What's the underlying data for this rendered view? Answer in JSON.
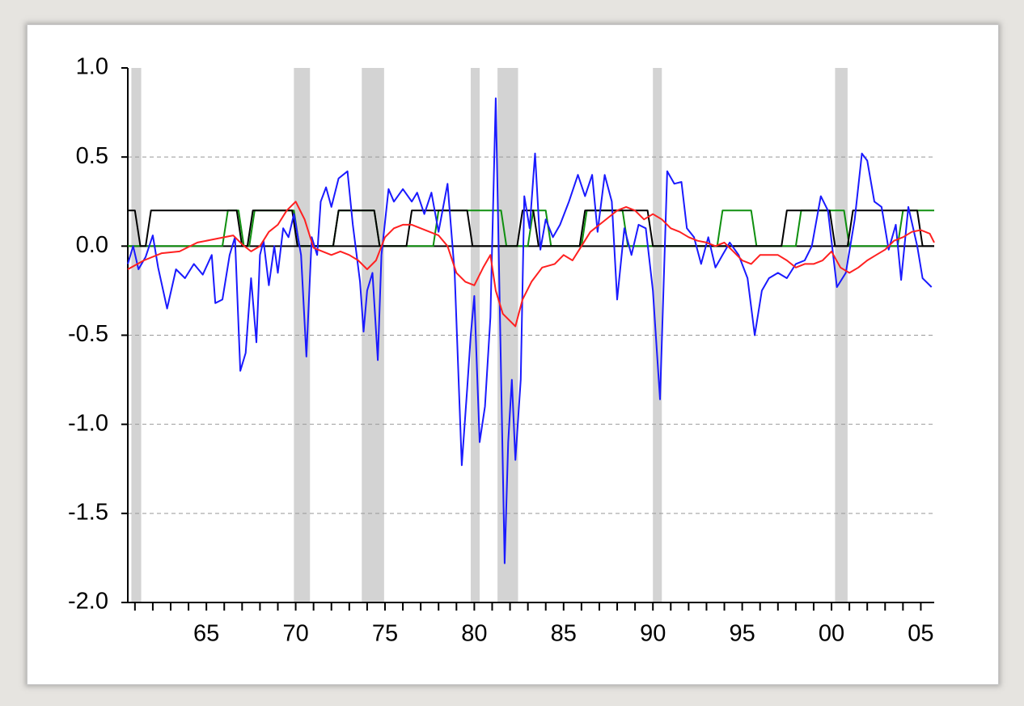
{
  "chart_data": {
    "type": "line",
    "xlim": [
      1960.6,
      2005.75
    ],
    "ylim": [
      -2,
      1
    ],
    "yticks": [
      {
        "value": 1,
        "label": "1.0"
      },
      0.5,
      {
        "value": 0,
        "label": "0.0"
      },
      -0.5,
      {
        "value": -1,
        "label": "-1.0"
      },
      -1.5,
      {
        "value": -2,
        "label": "-2.0"
      }
    ],
    "xticks": [
      {
        "value": 1965,
        "label": "65"
      },
      {
        "value": 1970,
        "label": "70"
      },
      {
        "value": 1975,
        "label": "75"
      },
      {
        "value": 1980,
        "label": "80"
      },
      {
        "value": 1985,
        "label": "85"
      },
      {
        "value": 1990,
        "label": "90"
      },
      {
        "value": 1995,
        "label": "95"
      },
      {
        "value": 2000,
        "label": "00"
      },
      {
        "value": 2005,
        "label": "05"
      }
    ],
    "xminor_ticks": [
      1961,
      1962,
      1963,
      1964,
      1965,
      1966,
      1967,
      1968,
      1969,
      1970,
      1971,
      1972,
      1973,
      1974,
      1975,
      1976,
      1977,
      1978,
      1979,
      1980,
      1981,
      1982,
      1983,
      1984,
      1985,
      1986,
      1987,
      1988,
      1989,
      1990,
      1991,
      1992,
      1993,
      1994,
      1995,
      1996,
      1997,
      1998,
      1999,
      2000,
      2001,
      2002,
      2003,
      2004,
      2005
    ],
    "grid": true,
    "shading": [
      [
        1960.8,
        1961.35
      ],
      [
        1969.9,
        1970.8
      ],
      [
        1973.7,
        1974.95
      ],
      [
        1979.8,
        1980.3
      ],
      [
        1981.3,
        1982.45
      ],
      [
        1990.0,
        1990.5
      ],
      [
        2000.2,
        2000.9
      ]
    ],
    "series": [
      {
        "color": "#109010",
        "x": [
          1960.6,
          1965.9,
          1966.2,
          1966.8,
          1967.1,
          1967.4,
          1967.7,
          1969.9,
          1970.2,
          1972.1,
          1972.4,
          1974.4,
          1974.7,
          1977.7,
          1978.0,
          1981.5,
          1981.8,
          1983.0,
          1983.3,
          1984.0,
          1984.3,
          1986.0,
          1986.3,
          1988.3,
          1988.6,
          1993.6,
          1993.9,
          1995.5,
          1995.8,
          1998.0,
          1998.3,
          2000.7,
          2001.0,
          2003.7,
          2004.0,
          2005.75
        ],
        "values": [
          0,
          0,
          0.2,
          0.2,
          0,
          0,
          0.2,
          0.2,
          0,
          0,
          0.2,
          0.2,
          0,
          0,
          0.2,
          0.2,
          0,
          0,
          0.2,
          0.2,
          0,
          0,
          0.2,
          0.2,
          0,
          0,
          0.2,
          0.2,
          0,
          0,
          0.2,
          0.2,
          0,
          0,
          0.2,
          0.2
        ]
      },
      {
        "color": "#000000",
        "x": [
          1960.6,
          1961.0,
          1961.3,
          1961.6,
          1961.9,
          1966.7,
          1967.0,
          1967.3,
          1967.6,
          1969.8,
          1970.1,
          1972.1,
          1972.4,
          1974.4,
          1974.7,
          1976.2,
          1976.5,
          1979.6,
          1979.9,
          1982.4,
          1982.7,
          1983.3,
          1983.6,
          1985.9,
          1986.2,
          1989.7,
          1990.0,
          1997.2,
          1997.5,
          1999.9,
          2000.2,
          2000.9,
          2001.2,
          2004.8,
          2005.1,
          2005.75
        ],
        "values": [
          0.2,
          0.2,
          0,
          0,
          0.2,
          0.2,
          0,
          0,
          0.2,
          0.2,
          0,
          0,
          0.2,
          0.2,
          0,
          0,
          0.2,
          0.2,
          0,
          0,
          0.2,
          0.2,
          0,
          0,
          0.2,
          0.2,
          0,
          0,
          0.2,
          0.2,
          0,
          0,
          0.2,
          0.2,
          0,
          0
        ]
      },
      {
        "color": "#1a1aff",
        "x": [
          1960.6,
          1960.9,
          1961.2,
          1961.6,
          1962.0,
          1962.3,
          1962.8,
          1963.3,
          1963.8,
          1964.3,
          1964.8,
          1965.3,
          1965.5,
          1965.9,
          1966.3,
          1966.6,
          1966.9,
          1967.2,
          1967.5,
          1967.8,
          1968.0,
          1968.2,
          1968.5,
          1968.8,
          1969.0,
          1969.3,
          1969.6,
          1969.9,
          1970.3,
          1970.6,
          1970.9,
          1971.2,
          1971.4,
          1971.7,
          1972.0,
          1972.4,
          1972.9,
          1973.2,
          1973.6,
          1973.8,
          1974.0,
          1974.3,
          1974.6,
          1974.8,
          1975.2,
          1975.5,
          1976.0,
          1976.5,
          1976.8,
          1977.2,
          1977.6,
          1978.0,
          1978.5,
          1978.9,
          1979.3,
          1979.6,
          1979.8,
          1980.0,
          1980.3,
          1980.6,
          1980.9,
          1981.2,
          1981.4,
          1981.7,
          1981.9,
          1982.1,
          1982.3,
          1982.6,
          1982.8,
          1983.1,
          1983.4,
          1983.7,
          1984.0,
          1984.4,
          1984.8,
          1985.3,
          1985.8,
          1986.2,
          1986.6,
          1986.9,
          1987.3,
          1987.7,
          1988.0,
          1988.4,
          1988.8,
          1989.2,
          1989.6,
          1990.0,
          1990.4,
          1990.8,
          1991.2,
          1991.6,
          1991.9,
          1992.3,
          1992.7,
          1993.1,
          1993.5,
          1993.9,
          1994.3,
          1994.8,
          1995.3,
          1995.7,
          1996.1,
          1996.5,
          1997.0,
          1997.5,
          1998.0,
          1998.5,
          1998.9,
          1999.4,
          1999.8,
          2000.3,
          2000.8,
          2001.3,
          2001.7,
          2002.0,
          2002.4,
          2002.8,
          2003.2,
          2003.6,
          2003.9,
          2004.3,
          2004.8,
          2005.1,
          2005.6
        ],
        "values": [
          -0.1,
          0,
          -0.13,
          -0.06,
          0.06,
          -0.12,
          -0.35,
          -0.13,
          -0.18,
          -0.1,
          -0.16,
          -0.05,
          -0.32,
          -0.3,
          -0.05,
          0.05,
          -0.7,
          -0.6,
          -0.18,
          -0.54,
          -0.05,
          0.03,
          -0.22,
          0,
          -0.15,
          0.1,
          0.05,
          0.18,
          -0.05,
          -0.62,
          0.05,
          -0.05,
          0.25,
          0.33,
          0.22,
          0.38,
          0.42,
          0.12,
          -0.2,
          -0.48,
          -0.25,
          -0.15,
          -0.64,
          -0.05,
          0.32,
          0.25,
          0.32,
          0.25,
          0.3,
          0.18,
          0.3,
          0.08,
          0.35,
          -0.15,
          -1.23,
          -0.8,
          -0.5,
          -0.28,
          -1.1,
          -0.9,
          -0.4,
          0.83,
          -0.2,
          -1.78,
          -1.1,
          -0.75,
          -1.2,
          -0.75,
          0.28,
          0.1,
          0.52,
          -0.02,
          0.15,
          0.05,
          0.12,
          0.25,
          0.4,
          0.28,
          0.4,
          0.08,
          0.4,
          0.25,
          -0.3,
          0.1,
          -0.05,
          0.12,
          0.1,
          -0.25,
          -0.86,
          0.42,
          0.35,
          0.36,
          0.1,
          0.05,
          -0.1,
          0.05,
          -0.12,
          -0.05,
          0.02,
          -0.05,
          -0.18,
          -0.5,
          -0.25,
          -0.18,
          -0.15,
          -0.18,
          -0.1,
          -0.08,
          0,
          0.28,
          0.2,
          -0.23,
          -0.15,
          0.15,
          0.52,
          0.48,
          0.25,
          0.22,
          -0.02,
          0.12,
          -0.19,
          0.22,
          0,
          -0.18,
          -0.23
        ]
      },
      {
        "color": "#ff2020",
        "x": [
          1960.6,
          1961.5,
          1962.5,
          1963.5,
          1964.5,
          1965.5,
          1966.5,
          1967.0,
          1967.5,
          1968.0,
          1968.5,
          1969.0,
          1969.5,
          1970.0,
          1970.5,
          1971.0,
          1971.5,
          1972.0,
          1972.5,
          1973.0,
          1973.5,
          1974.0,
          1974.5,
          1975.0,
          1975.5,
          1976.0,
          1976.5,
          1977.0,
          1977.5,
          1978.0,
          1978.5,
          1979.0,
          1979.5,
          1980.0,
          1980.5,
          1980.9,
          1981.2,
          1981.6,
          1982.0,
          1982.3,
          1982.7,
          1983.2,
          1983.8,
          1984.5,
          1985.0,
          1985.5,
          1986.0,
          1986.5,
          1987.0,
          1987.5,
          1988.0,
          1988.5,
          1989.0,
          1989.5,
          1990.0,
          1990.5,
          1991.0,
          1991.5,
          1992.0,
          1992.5,
          1993.0,
          1993.5,
          1994.0,
          1994.5,
          1995.0,
          1995.5,
          1996.0,
          1997.0,
          1997.5,
          1998.0,
          1998.5,
          1999.0,
          1999.5,
          2000.0,
          2000.5,
          2001.0,
          2001.5,
          2002.0,
          2002.5,
          2003.0,
          2003.5,
          2004.0,
          2004.5,
          2005.0,
          2005.5,
          2005.75
        ],
        "values": [
          -0.13,
          -0.08,
          -0.04,
          -0.03,
          0.02,
          0.04,
          0.06,
          0.01,
          -0.03,
          0,
          0.08,
          0.12,
          0.2,
          0.25,
          0.15,
          -0.01,
          -0.03,
          -0.05,
          -0.03,
          -0.05,
          -0.08,
          -0.13,
          -0.08,
          0.05,
          0.1,
          0.12,
          0.12,
          0.1,
          0.08,
          0.06,
          0,
          -0.15,
          -0.2,
          -0.22,
          -0.12,
          -0.05,
          -0.25,
          -0.38,
          -0.42,
          -0.45,
          -0.3,
          -0.2,
          -0.12,
          -0.1,
          -0.05,
          -0.08,
          0,
          0.08,
          0.12,
          0.16,
          0.2,
          0.22,
          0.2,
          0.15,
          0.18,
          0.15,
          0.1,
          0.08,
          0.05,
          0.03,
          0.02,
          0,
          0.02,
          -0.03,
          -0.08,
          -0.1,
          -0.05,
          -0.05,
          -0.08,
          -0.12,
          -0.1,
          -0.1,
          -0.08,
          -0.03,
          -0.12,
          -0.15,
          -0.12,
          -0.08,
          -0.05,
          -0.02,
          0.03,
          0.05,
          0.08,
          0.09,
          0.07,
          0.02
        ]
      }
    ]
  }
}
